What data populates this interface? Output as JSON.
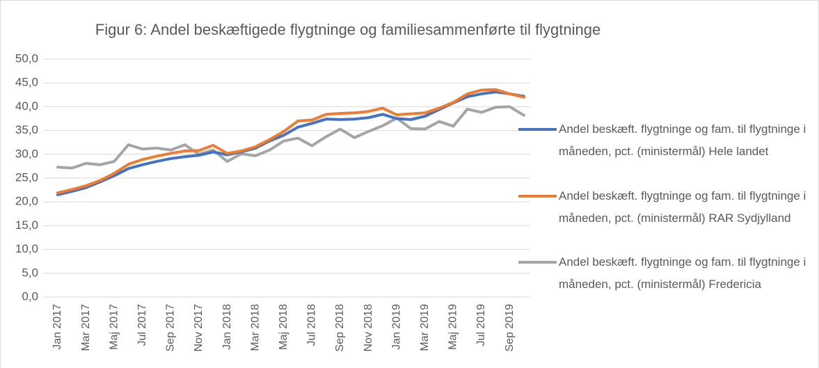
{
  "chart_data": {
    "type": "line",
    "title": "Figur 6: Andel beskæftigede flygtninge og familiesammenførte til flygtninge",
    "categories": [
      "Jan 2017",
      null,
      "Mar 2017",
      null,
      "Maj 2017",
      null,
      "Jul 2017",
      null,
      "Sep 2017",
      null,
      "Nov 2017",
      null,
      "Jan 2018",
      null,
      "Mar 2018",
      null,
      "Maj 2018",
      null,
      "Jul 2018",
      null,
      "Sep 2018",
      null,
      "Nov 2018",
      null,
      "Jan 2019",
      null,
      "Mar 2019",
      null,
      "Maj 2019",
      null,
      "Jul 2019",
      null,
      "Sep 2019",
      null
    ],
    "series": [
      {
        "name": "Andel beskæft. flygtninge og fam. til flygtninge i måneden, pct. (ministermål) Hele landet",
        "color": "#4472c4",
        "values": [
          21.5,
          22.2,
          23.0,
          24.2,
          25.5,
          27.0,
          27.8,
          28.5,
          29.1,
          29.5,
          29.8,
          30.5,
          29.9,
          30.5,
          31.3,
          32.8,
          34.0,
          35.7,
          36.5,
          37.4,
          37.3,
          37.4,
          37.7,
          38.4,
          37.5,
          37.3,
          38.0,
          39.4,
          40.8,
          42.1,
          42.7,
          43.1,
          42.7,
          42.2
        ]
      },
      {
        "name": "Andel beskæft. flygtninge og fam. til flygtninge i måneden, pct. (ministermål) RAR Sydjylland",
        "color": "#ed7d31",
        "values": [
          21.9,
          22.6,
          23.4,
          24.5,
          26.0,
          27.9,
          28.9,
          29.6,
          30.2,
          30.7,
          30.8,
          31.9,
          30.2,
          30.7,
          31.6,
          33.1,
          34.8,
          37.0,
          37.2,
          38.4,
          38.6,
          38.7,
          39.0,
          39.7,
          38.3,
          38.5,
          38.7,
          39.7,
          40.9,
          42.7,
          43.5,
          43.6,
          42.7,
          42.0
        ]
      },
      {
        "name": "Andel beskæft. flygtninge og fam. til flygtninge i måneden, pct. (ministermål) Fredericia",
        "color": "#a5a5a5",
        "values": [
          27.3,
          27.1,
          28.1,
          27.8,
          28.5,
          32.0,
          31.1,
          31.3,
          30.9,
          32.0,
          30.0,
          30.9,
          28.5,
          30.1,
          29.7,
          30.9,
          32.8,
          33.4,
          31.8,
          33.7,
          35.3,
          33.5,
          34.8,
          36.0,
          37.6,
          35.4,
          35.3,
          36.9,
          35.9,
          39.5,
          38.8,
          39.9,
          40.0,
          38.2
        ]
      }
    ],
    "ylim": [
      0,
      50
    ],
    "yticks": [
      {
        "value": 0,
        "label": "0,0"
      },
      {
        "value": 5,
        "label": "5,0"
      },
      {
        "value": 10,
        "label": "10,0"
      },
      {
        "value": 15,
        "label": "15,0"
      },
      {
        "value": 20,
        "label": "20,0"
      },
      {
        "value": 25,
        "label": "25,0"
      },
      {
        "value": 30,
        "label": "30,0"
      },
      {
        "value": 35,
        "label": "35,0"
      },
      {
        "value": 40,
        "label": "40,0"
      },
      {
        "value": 45,
        "label": "45,0"
      },
      {
        "value": 50,
        "label": "50,0"
      }
    ],
    "grid": true,
    "legend": "right"
  }
}
